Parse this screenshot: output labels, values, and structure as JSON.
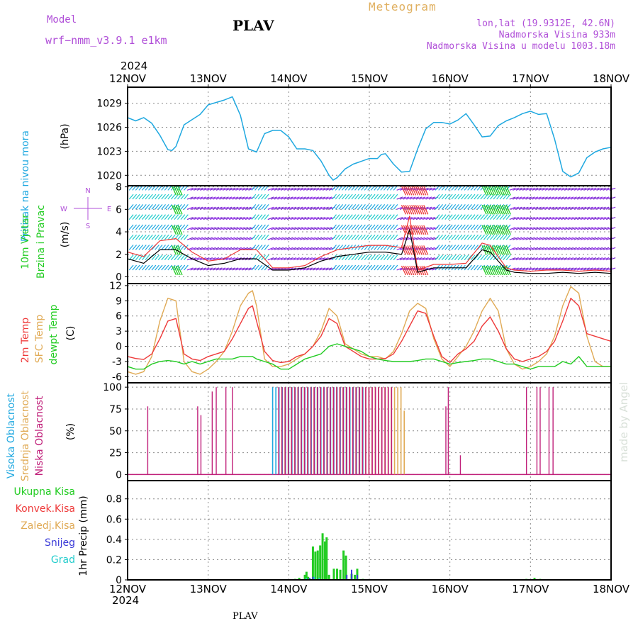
{
  "header": {
    "model_label": "Model",
    "model_name": "wrf−nmm_v3.9.1 e1km",
    "title": "PLAV",
    "meteogram": "Meteogram",
    "lonlat": "lon,lat (19.9312E, 42.6N)",
    "elevation": "Nadmorska Visina 933m",
    "model_elevation": "Nadmorska Visina u modelu 1003.18m",
    "year_top": "2024",
    "year_bottom": "2024",
    "footer_station": "PLAV",
    "credit": "made by Angel"
  },
  "colors": {
    "pressure": "#1fa8e0",
    "temp2m": "#ee3a3a",
    "sfc": "#e0aa55",
    "dew": "#22cc22",
    "high_cloud": "#1fa8e0",
    "mid_cloud": "#e0aa55",
    "low_cloud": "#c0207a",
    "total_precip": "#22cc22",
    "conv_precip": "#ee3a3a",
    "snow": "#3a3ad8",
    "grad": "#22cccc",
    "wind_label": "#22cc22",
    "wind_speed_line": "#000000",
    "wind_gust_line": "#ee3a3a"
  },
  "chart_data": [
    {
      "type": "line",
      "panel": "pressure",
      "ylabel_name": "Pritisak na nivou mora",
      "ylabel_unit": "(hPa)",
      "yticks": [
        1020,
        1023,
        1026,
        1029
      ],
      "ylim": [
        1018.7,
        1031
      ],
      "x_days": [
        12,
        12.1,
        12.2,
        12.3,
        12.4,
        12.5,
        12.55,
        12.6,
        12.7,
        12.9,
        13.0,
        13.2,
        13.3,
        13.4,
        13.5,
        13.6,
        13.7,
        13.8,
        13.9,
        14.0,
        14.1,
        14.2,
        14.3,
        14.4,
        14.5,
        14.55,
        14.6,
        14.7,
        14.8,
        15.0,
        15.1,
        15.15,
        15.2,
        15.3,
        15.4,
        15.5,
        15.6,
        15.7,
        15.8,
        15.9,
        16.0,
        16.1,
        16.2,
        16.3,
        16.4,
        16.5,
        16.6,
        16.7,
        16.8,
        16.9,
        17.0,
        17.1,
        17.2,
        17.3,
        17.4,
        17.5,
        17.6,
        17.7,
        17.8,
        17.9,
        18.0
      ],
      "values": [
        1027.2,
        1026.8,
        1027.2,
        1026.5,
        1025.0,
        1023.2,
        1023.1,
        1023.6,
        1026.3,
        1027.6,
        1028.8,
        1029.4,
        1029.8,
        1027.5,
        1023.3,
        1022.9,
        1025.2,
        1025.6,
        1025.6,
        1024.8,
        1023.3,
        1023.3,
        1023.1,
        1021.8,
        1020.0,
        1019.4,
        1019.7,
        1020.8,
        1021.4,
        1022.1,
        1022.1,
        1022.6,
        1022.7,
        1021.4,
        1020.4,
        1020.5,
        1023.3,
        1025.8,
        1026.6,
        1026.6,
        1026.4,
        1026.9,
        1027.7,
        1026.3,
        1024.8,
        1024.9,
        1026.2,
        1026.8,
        1027.2,
        1027.7,
        1028.0,
        1027.6,
        1027.7,
        1024.5,
        1020.5,
        1019.8,
        1020.3,
        1022.2,
        1022.9,
        1023.3,
        1023.5
      ]
    },
    {
      "type": "line",
      "panel": "wind",
      "ylabel_name": "10m Vjetar",
      "ylabel_name2": "Brzina i Pravac",
      "ylabel_unit": "(m/s)",
      "compass": {
        "n": "N",
        "w": "W",
        "e": "E",
        "s": "S"
      },
      "yticks": [
        0,
        2,
        4,
        6,
        8
      ],
      "ylim": [
        -0.6,
        8.1
      ],
      "x_days": [
        12,
        12.2,
        12.4,
        12.6,
        12.8,
        13.0,
        13.2,
        13.4,
        13.6,
        13.8,
        14.0,
        14.2,
        14.4,
        14.6,
        14.8,
        15.0,
        15.2,
        15.4,
        15.5,
        15.6,
        15.8,
        16.0,
        16.2,
        16.4,
        16.5,
        16.7,
        16.8,
        17.0,
        17.2,
        17.4,
        17.6,
        17.8,
        18.0
      ],
      "speed": [
        1.6,
        1.2,
        2.4,
        2.4,
        1.6,
        1.0,
        1.2,
        1.6,
        1.6,
        0.6,
        0.6,
        0.8,
        1.4,
        1.8,
        2.0,
        2.2,
        2.2,
        2.0,
        4.2,
        0.4,
        0.8,
        0.8,
        0.8,
        2.4,
        2.2,
        0.6,
        0.4,
        0.3,
        0.3,
        0.4,
        0.3,
        0.4,
        0.3
      ],
      "gust": [
        2.2,
        1.8,
        3.2,
        3.4,
        2.2,
        1.4,
        1.6,
        2.4,
        2.4,
        0.8,
        0.8,
        1.0,
        1.8,
        2.4,
        2.6,
        2.8,
        2.8,
        2.6,
        5.4,
        0.6,
        1.1,
        1.1,
        1.2,
        3.0,
        2.8,
        0.8,
        0.6,
        0.5,
        0.6,
        0.6,
        0.5,
        0.6,
        0.5
      ]
    },
    {
      "type": "line",
      "panel": "temperature",
      "ylabel_names": [
        "2m Temp",
        "SFC Temp",
        "dewpt Temp"
      ],
      "ylabel_unit": "(C)",
      "yticks": [
        -6,
        -3,
        0,
        3,
        6,
        9,
        12
      ],
      "ylim": [
        -7.2,
        12.4
      ],
      "x_days": [
        12,
        12.1,
        12.2,
        12.3,
        12.4,
        12.5,
        12.6,
        12.7,
        12.8,
        12.9,
        13.0,
        13.1,
        13.2,
        13.3,
        13.4,
        13.5,
        13.55,
        13.6,
        13.7,
        13.8,
        13.9,
        14.0,
        14.1,
        14.2,
        14.3,
        14.4,
        14.5,
        14.6,
        14.7,
        14.8,
        14.9,
        15.0,
        15.1,
        15.2,
        15.3,
        15.4,
        15.5,
        15.6,
        15.7,
        15.8,
        15.9,
        16.0,
        16.1,
        16.2,
        16.3,
        16.4,
        16.5,
        16.6,
        16.7,
        16.8,
        16.9,
        17.0,
        17.1,
        17.2,
        17.3,
        17.4,
        17.5,
        17.6,
        17.7,
        17.8,
        17.9,
        18.0
      ],
      "series": [
        {
          "name": "2m Temp",
          "values": [
            -2.0,
            -2.4,
            -2.6,
            -1.5,
            1.5,
            5.0,
            5.5,
            -1.5,
            -2.5,
            -2.8,
            -2.0,
            -1.5,
            -1.0,
            1.5,
            4.5,
            7.5,
            8.0,
            5.0,
            -1.0,
            -2.8,
            -3.2,
            -3.0,
            -2.0,
            -1.5,
            0.0,
            2.0,
            5.5,
            4.5,
            0.0,
            -1.0,
            -2.0,
            -2.5,
            -2.5,
            -2.4,
            -1.5,
            1.0,
            4.0,
            7.0,
            6.5,
            2.0,
            -2.0,
            -3.2,
            -1.5,
            -0.5,
            1.0,
            4.0,
            5.8,
            3.0,
            -0.5,
            -2.5,
            -3.0,
            -2.5,
            -2.0,
            -1.0,
            1.0,
            5.0,
            9.5,
            8.0,
            2.5,
            2.0,
            1.5,
            1.0
          ]
        },
        {
          "name": "SFC Temp",
          "values": [
            -5.0,
            -5.5,
            -5.0,
            -2.0,
            5.0,
            9.5,
            9.0,
            -3.0,
            -5.0,
            -5.5,
            -4.5,
            -3.0,
            -1.0,
            3.0,
            8.0,
            10.5,
            11.0,
            8.0,
            -2.5,
            -4.0,
            -4.0,
            -3.5,
            -2.5,
            -1.5,
            0.0,
            3.0,
            7.5,
            6.0,
            0.5,
            -0.5,
            -1.5,
            -2.0,
            -2.0,
            -2.5,
            -1.0,
            2.5,
            7.0,
            8.5,
            7.5,
            1.5,
            -2.5,
            -4.0,
            -2.0,
            0.0,
            3.0,
            7.0,
            9.5,
            7.0,
            -0.5,
            -3.5,
            -4.5,
            -4.0,
            -3.0,
            -1.5,
            2.0,
            8.0,
            11.8,
            10.5,
            2.0,
            -3.0,
            -4.0,
            -4.0
          ]
        },
        {
          "name": "dewpt Temp",
          "values": [
            -4.0,
            -4.5,
            -4.5,
            -3.5,
            -3.0,
            -2.8,
            -3.0,
            -3.5,
            -3.0,
            -3.5,
            -3.0,
            -2.5,
            -2.5,
            -2.5,
            -2.0,
            -2.0,
            -2.0,
            -2.5,
            -3.0,
            -3.5,
            -4.5,
            -4.5,
            -3.5,
            -2.5,
            -2.0,
            -1.5,
            0.0,
            0.5,
            0.0,
            -0.5,
            -1.0,
            -2.0,
            -2.5,
            -2.8,
            -3.0,
            -3.0,
            -3.0,
            -2.8,
            -2.5,
            -2.5,
            -3.0,
            -3.5,
            -3.2,
            -3.0,
            -2.8,
            -2.5,
            -2.5,
            -3.0,
            -3.5,
            -3.5,
            -4.0,
            -4.5,
            -4.0,
            -4.0,
            -4.0,
            -3.0,
            -3.5,
            -2.0,
            -4.0,
            -4.0,
            -4.0,
            -4.0
          ]
        }
      ]
    },
    {
      "type": "bar",
      "panel": "cloud",
      "ylabel_names": [
        "Visoka Oblacnost",
        "Srednja Oblacnost",
        "Niska Oblacnost"
      ],
      "ylabel_unit": "(%)",
      "yticks": [
        0,
        25,
        50,
        75,
        100
      ],
      "ylim": [
        -7,
        105
      ],
      "low_bars": [
        [
          12.25,
          78
        ],
        [
          12.87,
          78
        ],
        [
          12.91,
          68
        ],
        [
          13.05,
          95
        ],
        [
          13.1,
          100
        ],
        [
          13.22,
          100
        ],
        [
          13.3,
          100
        ],
        [
          15.95,
          78
        ],
        [
          15.98,
          100
        ],
        [
          16.13,
          22
        ],
        [
          16.95,
          100
        ],
        [
          17.08,
          100
        ],
        [
          17.12,
          100
        ],
        [
          17.23,
          100
        ],
        [
          17.28,
          100
        ]
      ],
      "high_block": [
        13.8,
        14.95
      ],
      "mid_block": [
        13.9,
        15.45
      ],
      "low_block": [
        13.85,
        15.3
      ]
    },
    {
      "type": "bar",
      "panel": "precip",
      "ylabel_names": [
        "Ukupna Kisa",
        "Konvek.Kisa",
        "Zaledj.Kisa",
        "Snijeg",
        "Grad"
      ],
      "ylabel_unit": "1hr Precip (mm)",
      "yticks": [
        0,
        0.2,
        0.4,
        0.6,
        0.8
      ],
      "ylim": [
        0,
        0.98
      ],
      "bars": [
        [
          14.08,
          0.01
        ],
        [
          14.13,
          0.02
        ],
        [
          14.2,
          0.05
        ],
        [
          14.22,
          0.08
        ],
        [
          14.24,
          0.03
        ],
        [
          14.3,
          0.33
        ],
        [
          14.33,
          0.28
        ],
        [
          14.36,
          0.29
        ],
        [
          14.39,
          0.34
        ],
        [
          14.42,
          0.46
        ],
        [
          14.45,
          0.38
        ],
        [
          14.47,
          0.42
        ],
        [
          14.5,
          0.05
        ],
        [
          14.56,
          0.11
        ],
        [
          14.6,
          0.11
        ],
        [
          14.64,
          0.1
        ],
        [
          14.68,
          0.29
        ],
        [
          14.71,
          0.24
        ],
        [
          14.78,
          0.06
        ],
        [
          14.82,
          0.05
        ],
        [
          14.85,
          0.11
        ],
        [
          14.92,
          0.01
        ],
        [
          16.95,
          0.01
        ],
        [
          17.05,
          0.02
        ],
        [
          17.12,
          0.01
        ]
      ],
      "snow_bars": [
        [
          14.26,
          0.02
        ],
        [
          14.3,
          0.03
        ],
        [
          14.72,
          0.05
        ],
        [
          14.78,
          0.1
        ],
        [
          14.85,
          0.05
        ]
      ],
      "grad_bars": [
        [
          14.2,
          0.02
        ],
        [
          14.3,
          0.03
        ],
        [
          14.36,
          0.02
        ]
      ]
    }
  ],
  "time_axis": {
    "labels": [
      "12NOV",
      "13NOV",
      "14NOV",
      "15NOV",
      "16NOV",
      "17NOV",
      "18NOV"
    ],
    "day_start": 12,
    "day_end": 18
  }
}
